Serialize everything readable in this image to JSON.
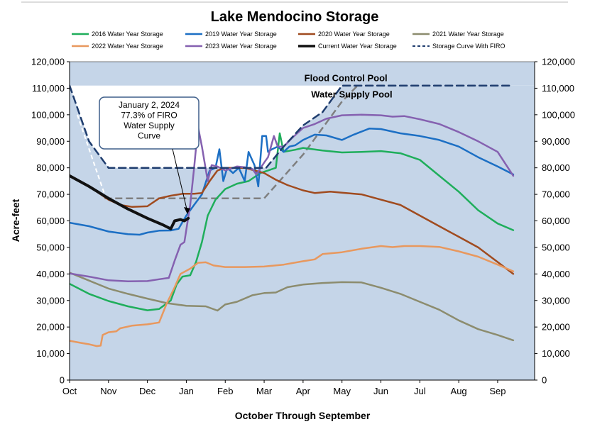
{
  "chart_data": {
    "type": "line",
    "title": "Lake Mendocino Storage",
    "xlabel": "October Through September",
    "ylabel": "Acre-feet",
    "x_unit": "month offset from Oct 1",
    "x_ticks": [
      "Oct",
      "Nov",
      "Dec",
      "Jan",
      "Feb",
      "Mar",
      "Apr",
      "May",
      "Jun",
      "Jul",
      "Aug",
      "Sep"
    ],
    "ylim": [
      0,
      120000
    ],
    "y_ticks": [
      "0",
      "10,000",
      "20,000",
      "30,000",
      "40,000",
      "50,000",
      "60,000",
      "70,000",
      "80,000",
      "90,000",
      "100,000",
      "110,000",
      "120,000"
    ],
    "grid": false,
    "legend_position": "top",
    "background_fill": "#c5d5e8",
    "annotations": {
      "flood_pool": "Flood Control Pool",
      "supply_pool": "Water Supply Pool",
      "callout": [
        "January 2, 2024",
        "77.3% of FIRO",
        "Water Supply",
        "Curve"
      ]
    },
    "series": [
      {
        "name": "2016 Water Year Storage",
        "color": "#1fae5b",
        "width": 2.5,
        "points": [
          [
            0,
            36300
          ],
          [
            0.5,
            32500
          ],
          [
            1,
            29800
          ],
          [
            1.5,
            27800
          ],
          [
            2,
            26300
          ],
          [
            2.3,
            26800
          ],
          [
            2.6,
            30000
          ],
          [
            2.75,
            36000
          ],
          [
            2.9,
            39000
          ],
          [
            3.1,
            39500
          ],
          [
            3.25,
            44500
          ],
          [
            3.4,
            52000
          ],
          [
            3.55,
            62000
          ],
          [
            3.75,
            68000
          ],
          [
            4,
            72000
          ],
          [
            4.3,
            74000
          ],
          [
            4.6,
            75000
          ],
          [
            4.9,
            78000
          ],
          [
            5.1,
            79000
          ],
          [
            5.3,
            80000
          ],
          [
            5.4,
            93000
          ],
          [
            5.5,
            86000
          ],
          [
            5.8,
            86800
          ],
          [
            6,
            87500
          ],
          [
            6.5,
            86500
          ],
          [
            7,
            85800
          ],
          [
            7.5,
            86000
          ],
          [
            8,
            86300
          ],
          [
            8.5,
            85500
          ],
          [
            9,
            83000
          ],
          [
            9.5,
            77000
          ],
          [
            10,
            71000
          ],
          [
            10.5,
            64000
          ],
          [
            11,
            59000
          ],
          [
            11.4,
            56500
          ]
        ]
      },
      {
        "name": "2019 Water Year Storage",
        "color": "#1c6fc4",
        "width": 2.5,
        "points": [
          [
            0,
            59300
          ],
          [
            0.5,
            58000
          ],
          [
            1,
            56000
          ],
          [
            1.5,
            55000
          ],
          [
            1.8,
            54800
          ],
          [
            2,
            55600
          ],
          [
            2.3,
            56300
          ],
          [
            2.6,
            56400
          ],
          [
            2.8,
            57000
          ],
          [
            3,
            62000
          ],
          [
            3.2,
            66000
          ],
          [
            3.4,
            70000
          ],
          [
            3.6,
            79000
          ],
          [
            3.75,
            80000
          ],
          [
            3.85,
            87000
          ],
          [
            3.95,
            75000
          ],
          [
            4.05,
            80000
          ],
          [
            4.2,
            78000
          ],
          [
            4.35,
            80000
          ],
          [
            4.5,
            75000
          ],
          [
            4.6,
            86000
          ],
          [
            4.75,
            81000
          ],
          [
            4.85,
            73000
          ],
          [
            4.95,
            92000
          ],
          [
            5.05,
            92000
          ],
          [
            5.1,
            86000
          ],
          [
            5.2,
            87000
          ],
          [
            5.35,
            88000
          ],
          [
            5.5,
            86000
          ],
          [
            5.65,
            88000
          ],
          [
            5.8,
            88500
          ],
          [
            6,
            90500
          ],
          [
            6.3,
            92500
          ],
          [
            6.6,
            92200
          ],
          [
            7,
            90500
          ],
          [
            7.3,
            92500
          ],
          [
            7.7,
            94800
          ],
          [
            8,
            94600
          ],
          [
            8.5,
            93000
          ],
          [
            9,
            92000
          ],
          [
            9.5,
            90500
          ],
          [
            10,
            88000
          ],
          [
            10.5,
            84000
          ],
          [
            11,
            80500
          ],
          [
            11.4,
            77500
          ]
        ]
      },
      {
        "name": "2020 Water Year Storage",
        "color": "#a04b1f",
        "width": 2.5,
        "points": [
          [
            0,
            76800
          ],
          [
            0.5,
            73000
          ],
          [
            1,
            68000
          ],
          [
            1.3,
            66000
          ],
          [
            1.6,
            65300
          ],
          [
            2,
            65500
          ],
          [
            2.3,
            68500
          ],
          [
            2.6,
            69500
          ],
          [
            2.9,
            70200
          ],
          [
            3.2,
            70200
          ],
          [
            3.4,
            70500
          ],
          [
            3.6,
            75000
          ],
          [
            3.8,
            79000
          ],
          [
            4,
            80000
          ],
          [
            4.5,
            80000
          ],
          [
            5,
            78000
          ],
          [
            5.3,
            75500
          ],
          [
            5.6,
            73500
          ],
          [
            6,
            71500
          ],
          [
            6.3,
            70500
          ],
          [
            6.7,
            71000
          ],
          [
            7,
            70600
          ],
          [
            7.5,
            70000
          ],
          [
            8,
            68000
          ],
          [
            8.5,
            66000
          ],
          [
            9,
            62000
          ],
          [
            9.5,
            58000
          ],
          [
            10,
            54000
          ],
          [
            10.5,
            50000
          ],
          [
            11,
            44500
          ],
          [
            11.4,
            40000
          ]
        ]
      },
      {
        "name": "2021 Water Year Storage",
        "color": "#8c8c6e",
        "width": 2.5,
        "points": [
          [
            0,
            40500
          ],
          [
            0.5,
            37500
          ],
          [
            1,
            34500
          ],
          [
            1.5,
            32500
          ],
          [
            2,
            30700
          ],
          [
            2.5,
            29000
          ],
          [
            3,
            28000
          ],
          [
            3.5,
            27800
          ],
          [
            3.8,
            26200
          ],
          [
            4,
            28500
          ],
          [
            4.3,
            29500
          ],
          [
            4.7,
            32000
          ],
          [
            5,
            32800
          ],
          [
            5.3,
            33000
          ],
          [
            5.6,
            35000
          ],
          [
            6,
            36000
          ],
          [
            6.5,
            36600
          ],
          [
            7,
            36900
          ],
          [
            7.5,
            36800
          ],
          [
            8,
            34800
          ],
          [
            8.5,
            32500
          ],
          [
            9,
            29500
          ],
          [
            9.5,
            26500
          ],
          [
            10,
            22500
          ],
          [
            10.5,
            19200
          ],
          [
            11,
            17000
          ],
          [
            11.4,
            15000
          ]
        ]
      },
      {
        "name": "2022 Water Year Storage",
        "color": "#e8985e",
        "width": 2.5,
        "points": [
          [
            0,
            14800
          ],
          [
            0.3,
            14000
          ],
          [
            0.5,
            13500
          ],
          [
            0.7,
            12800
          ],
          [
            0.8,
            13000
          ],
          [
            0.85,
            17000
          ],
          [
            1,
            18000
          ],
          [
            1.2,
            18400
          ],
          [
            1.3,
            19500
          ],
          [
            1.6,
            20500
          ],
          [
            2,
            21000
          ],
          [
            2.3,
            21700
          ],
          [
            2.5,
            29000
          ],
          [
            2.7,
            35000
          ],
          [
            2.85,
            40000
          ],
          [
            3.1,
            42000
          ],
          [
            3.3,
            44200
          ],
          [
            3.5,
            44400
          ],
          [
            3.7,
            43200
          ],
          [
            4,
            42600
          ],
          [
            4.5,
            42600
          ],
          [
            5,
            42800
          ],
          [
            5.5,
            43500
          ],
          [
            6,
            44800
          ],
          [
            6.3,
            45500
          ],
          [
            6.5,
            47500
          ],
          [
            7,
            48200
          ],
          [
            7.5,
            49500
          ],
          [
            8,
            50500
          ],
          [
            8.3,
            50100
          ],
          [
            8.6,
            50500
          ],
          [
            9,
            50500
          ],
          [
            9.5,
            50200
          ],
          [
            10,
            48500
          ],
          [
            10.5,
            46500
          ],
          [
            11,
            43500
          ],
          [
            11.4,
            41000
          ]
        ]
      },
      {
        "name": "2023 Water Year Storage",
        "color": "#8561b0",
        "width": 2.5,
        "points": [
          [
            0,
            40200
          ],
          [
            0.5,
            39000
          ],
          [
            1,
            37600
          ],
          [
            1.5,
            37200
          ],
          [
            2,
            37300
          ],
          [
            2.3,
            38000
          ],
          [
            2.55,
            38500
          ],
          [
            2.7,
            45000
          ],
          [
            2.85,
            51000
          ],
          [
            2.95,
            52000
          ],
          [
            3.1,
            66000
          ],
          [
            3.2,
            80000
          ],
          [
            3.3,
            95500
          ],
          [
            3.4,
            88000
          ],
          [
            3.55,
            75000
          ],
          [
            3.65,
            81000
          ],
          [
            3.8,
            80500
          ],
          [
            4,
            79000
          ],
          [
            4.3,
            80500
          ],
          [
            4.5,
            80200
          ],
          [
            4.7,
            79500
          ],
          [
            4.8,
            77500
          ],
          [
            5,
            82000
          ],
          [
            5.1,
            84000
          ],
          [
            5.25,
            92000
          ],
          [
            5.35,
            88000
          ],
          [
            5.5,
            88000
          ],
          [
            5.7,
            91000
          ],
          [
            5.85,
            93000
          ],
          [
            6,
            95000
          ],
          [
            6.3,
            96500
          ],
          [
            6.6,
            98500
          ],
          [
            7,
            99800
          ],
          [
            7.5,
            100000
          ],
          [
            8,
            99800
          ],
          [
            8.3,
            99300
          ],
          [
            8.6,
            99500
          ],
          [
            9,
            98300
          ],
          [
            9.5,
            96500
          ],
          [
            10,
            93500
          ],
          [
            10.5,
            90000
          ],
          [
            11,
            86000
          ],
          [
            11.4,
            77000
          ]
        ]
      },
      {
        "name": "Current Water Year Storage",
        "color": "#111111",
        "width": 4,
        "points": [
          [
            0,
            77000
          ],
          [
            0.5,
            73000
          ],
          [
            1,
            68500
          ],
          [
            1.5,
            64500
          ],
          [
            2,
            61000
          ],
          [
            2.4,
            58500
          ],
          [
            2.6,
            57000
          ],
          [
            2.7,
            60000
          ],
          [
            2.85,
            60500
          ],
          [
            2.95,
            60000
          ],
          [
            3.05,
            61000
          ]
        ]
      },
      {
        "name": "Storage Curve With FIRO",
        "color": "#1f3d6e",
        "width": 2.5,
        "dashed": true,
        "points": [
          [
            0,
            111000
          ],
          [
            0.5,
            90000
          ],
          [
            1,
            80000
          ],
          [
            3.5,
            80000
          ],
          [
            5.05,
            80000
          ],
          [
            5.5,
            88000
          ],
          [
            6,
            96000
          ],
          [
            6.5,
            101000
          ],
          [
            7,
            111000
          ],
          [
            11.4,
            111000
          ]
        ]
      }
    ]
  }
}
